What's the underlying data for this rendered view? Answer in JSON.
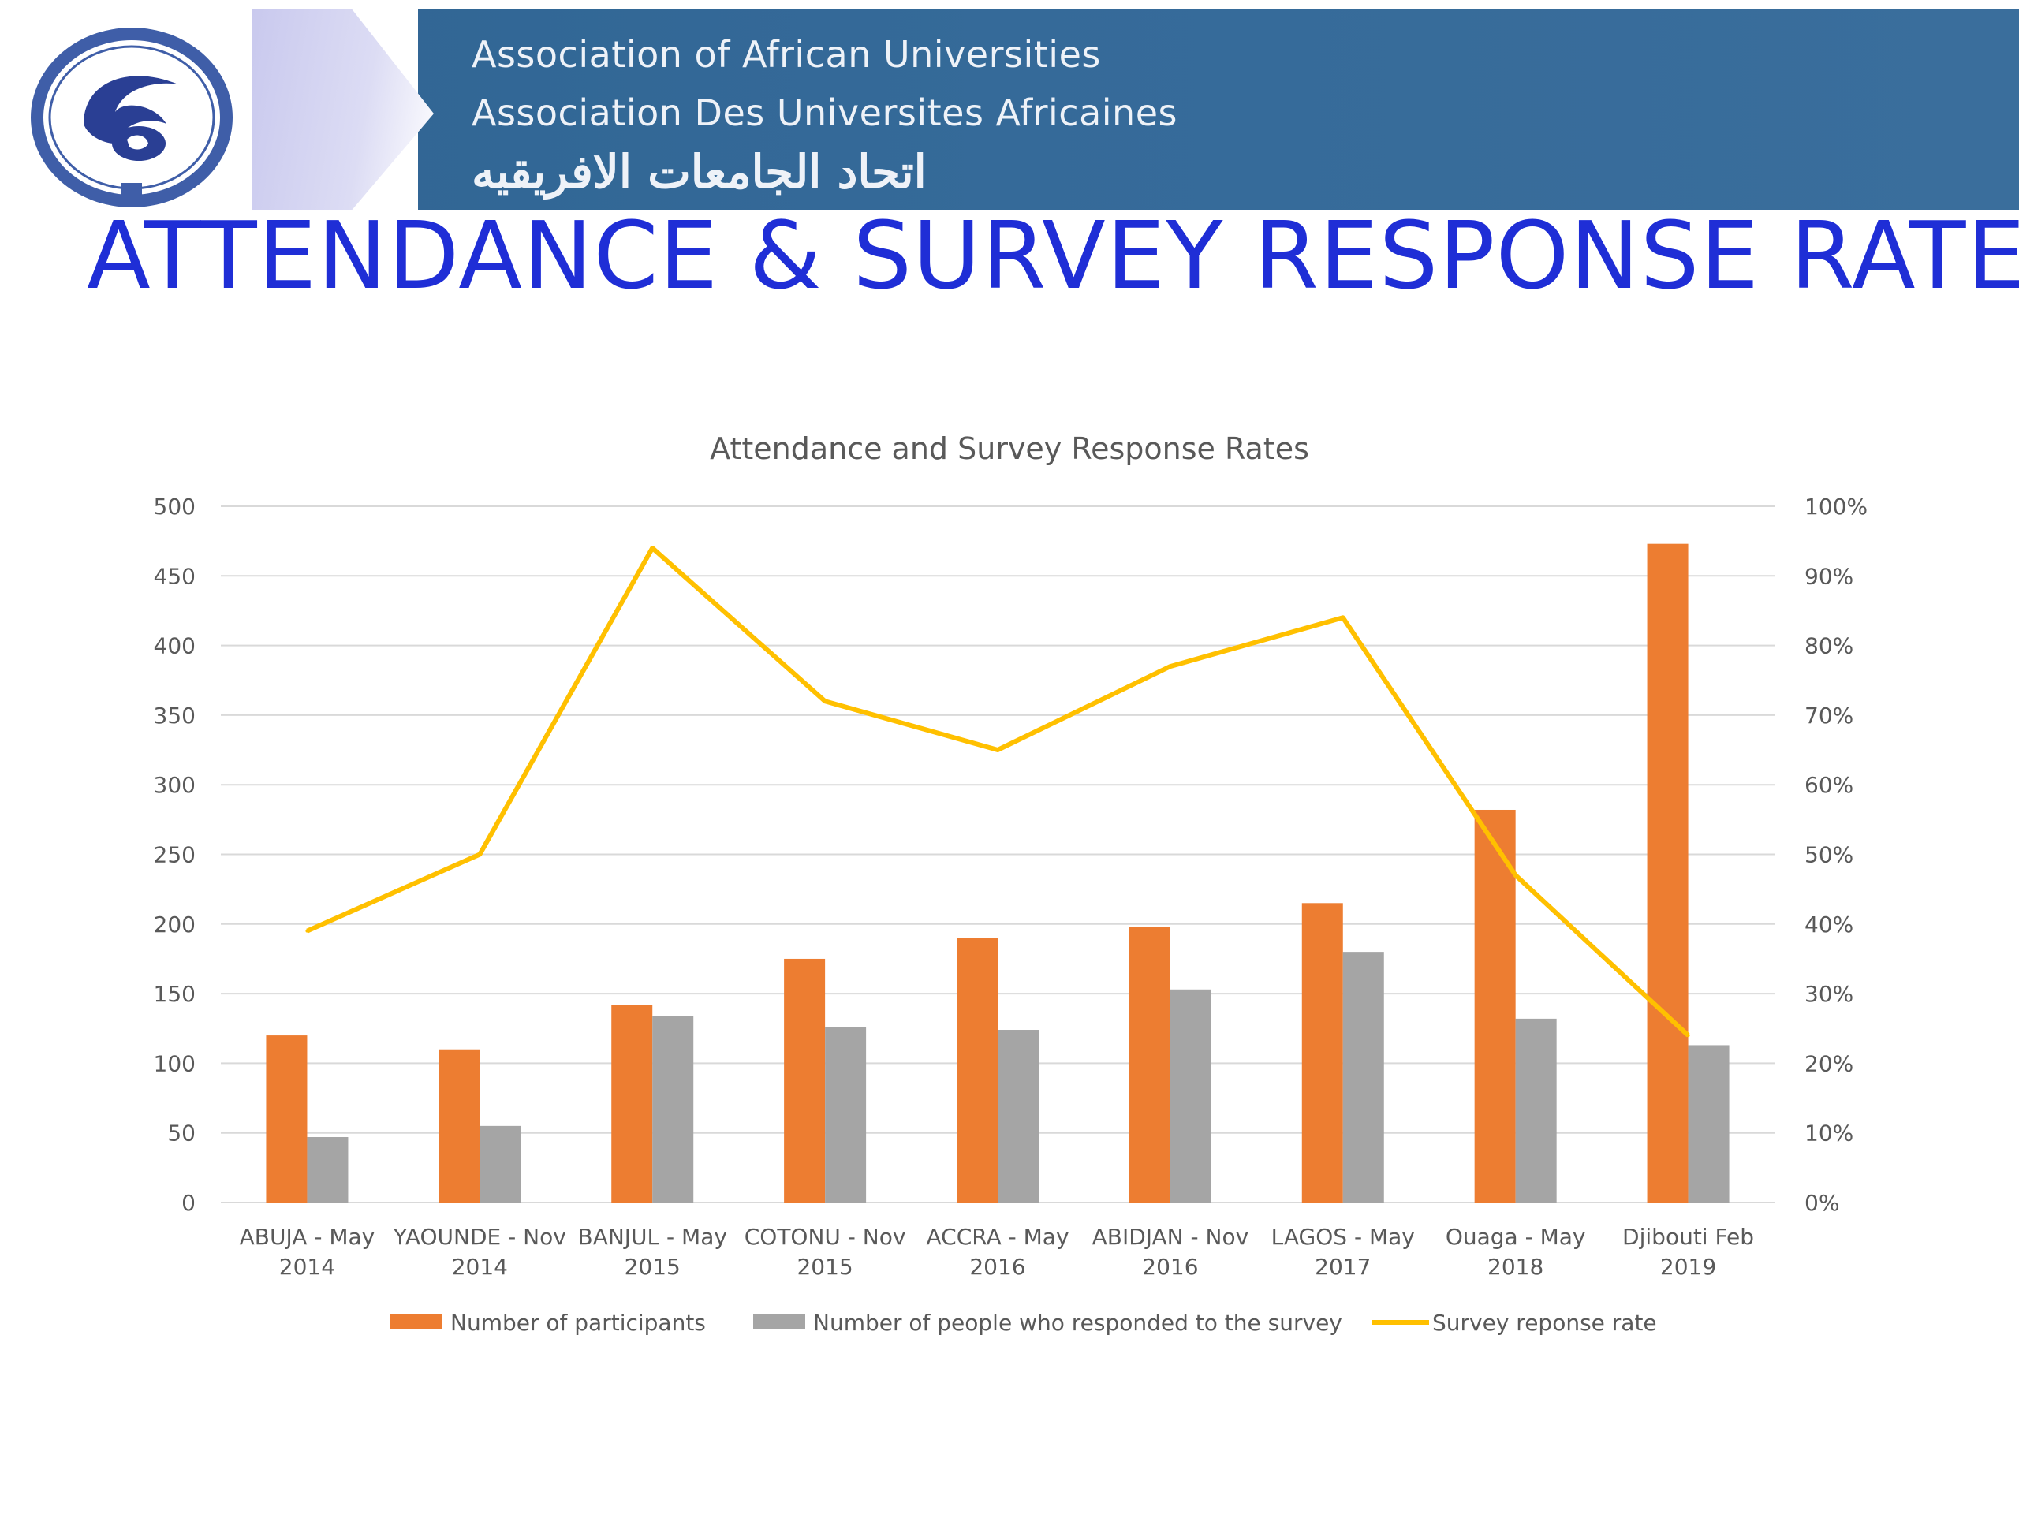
{
  "header": {
    "org_name_en": "Association of African Universities",
    "org_name_fr": "Association Des Universites Africaines",
    "org_name_ar": "اتحاد الجامعات الافريقيه",
    "logo_icon": "aau-seal-icon"
  },
  "slide_title": "ATTENDANCE & SURVEY RESPONSE RATES",
  "colors": {
    "participants": "#ed7d31",
    "responders": "#a5a5a5",
    "rate_line": "#ffc000",
    "title": "#1f2ed6",
    "axis_text": "#595959",
    "gridline": "#d9d9d9"
  },
  "chart_data": {
    "type": "bar",
    "title": "Attendance and Survey Response Rates",
    "categories": [
      [
        "ABUJA - May",
        "2014"
      ],
      [
        "YAOUNDE - Nov",
        "2014"
      ],
      [
        "BANJUL - May",
        "2015"
      ],
      [
        "COTONU - Nov",
        "2015"
      ],
      [
        "ACCRA - May",
        "2016"
      ],
      [
        "ABIDJAN - Nov",
        "2016"
      ],
      [
        "LAGOS - May",
        "2017"
      ],
      [
        "Ouaga - May",
        "2018"
      ],
      [
        "Djibouti Feb",
        "2019"
      ]
    ],
    "series": [
      {
        "name": "Number of participants",
        "type": "bar",
        "axis": "left",
        "values": [
          120,
          110,
          142,
          175,
          190,
          198,
          215,
          282,
          473
        ]
      },
      {
        "name": "Number of people who responded to the survey",
        "type": "bar",
        "axis": "left",
        "values": [
          47,
          55,
          134,
          126,
          124,
          153,
          180,
          132,
          113
        ]
      },
      {
        "name": "Survey reponse rate",
        "type": "line",
        "axis": "right",
        "values": [
          0.39,
          0.5,
          0.94,
          0.72,
          0.65,
          0.77,
          0.84,
          0.47,
          0.24
        ]
      }
    ],
    "y_left": {
      "min": 0,
      "max": 500,
      "ticks": [
        "0",
        "50",
        "100",
        "150",
        "200",
        "250",
        "300",
        "350",
        "400",
        "450",
        "500"
      ]
    },
    "y_right": {
      "min": 0,
      "max": 1,
      "ticks": [
        "0%",
        "10%",
        "20%",
        "30%",
        "40%",
        "50%",
        "60%",
        "70%",
        "80%",
        "90%",
        "100%"
      ]
    },
    "grid": true,
    "legend_position": "bottom"
  }
}
